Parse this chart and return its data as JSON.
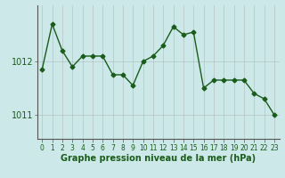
{
  "x": [
    0,
    1,
    2,
    3,
    4,
    5,
    6,
    7,
    8,
    9,
    10,
    11,
    12,
    13,
    14,
    15,
    16,
    17,
    18,
    19,
    20,
    21,
    22,
    23
  ],
  "y": [
    1011.85,
    1012.7,
    1012.2,
    1011.9,
    1012.1,
    1012.1,
    1012.1,
    1011.75,
    1011.75,
    1011.55,
    1012.0,
    1012.1,
    1012.3,
    1012.65,
    1012.5,
    1012.55,
    1011.5,
    1011.65,
    1011.65,
    1011.65,
    1011.65,
    1011.4,
    1011.3,
    1011.0
  ],
  "line_color": "#1a5c1a",
  "marker": "D",
  "markersize": 2.5,
  "linewidth": 1.0,
  "bg_color": "#cce8e8",
  "grid_color": "#aaaaaa",
  "xlabel": "Graphe pression niveau de la mer (hPa)",
  "yticks": [
    1011,
    1012
  ],
  "ylim": [
    1010.55,
    1013.05
  ],
  "xlim": [
    -0.5,
    23.5
  ],
  "xlabel_fontsize": 7,
  "ytick_fontsize": 7,
  "xtick_fontsize": 5.5
}
